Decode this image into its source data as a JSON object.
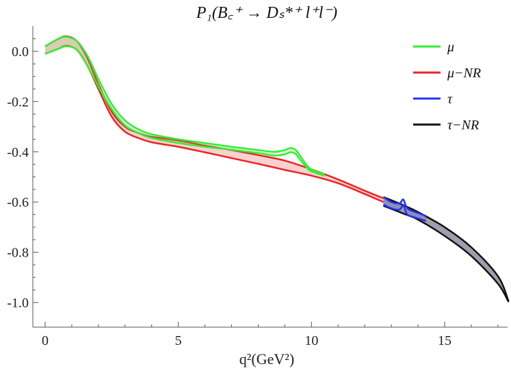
{
  "chart_data": {
    "type": "line",
    "title": "P₁(B꜀⁺ → Dₛ*⁺ l⁺l⁻)",
    "xlabel": "q²(GeV²)",
    "ylabel": "",
    "xlim": [
      0,
      17.5
    ],
    "ylim": [
      -1.05,
      0.1
    ],
    "x_ticks": [
      0,
      5,
      10,
      15
    ],
    "x_tick_labels": [
      "0",
      "5",
      "10",
      "15"
    ],
    "y_ticks": [
      0.0,
      -0.2,
      -0.4,
      -0.6,
      -0.8,
      -1.0
    ],
    "y_tick_labels": [
      "0.0",
      "-0.2",
      "-0.4",
      "-0.6",
      "-0.8",
      "-1.0"
    ],
    "grid": false,
    "legend_position": "top-right",
    "series": [
      {
        "name": "μ",
        "color": "#33ee33",
        "upper": [
          [
            0.0,
            0.02
          ],
          [
            0.5,
            0.05
          ],
          [
            0.8,
            0.058
          ],
          [
            1.2,
            0.04
          ],
          [
            1.6,
            -0.02
          ],
          [
            2.0,
            -0.11
          ],
          [
            2.5,
            -0.21
          ],
          [
            3.0,
            -0.275
          ],
          [
            3.5,
            -0.31
          ],
          [
            4.0,
            -0.33
          ],
          [
            5.0,
            -0.35
          ],
          [
            6.0,
            -0.365
          ],
          [
            7.0,
            -0.38
          ],
          [
            8.0,
            -0.393
          ],
          [
            8.6,
            -0.4
          ],
          [
            9.0,
            -0.393
          ],
          [
            9.2,
            -0.385
          ],
          [
            9.4,
            -0.392
          ],
          [
            9.6,
            -0.42
          ],
          [
            9.8,
            -0.45
          ],
          [
            10.0,
            -0.47
          ],
          [
            10.5,
            -0.49
          ]
        ],
        "lower": [
          [
            0.0,
            -0.01
          ],
          [
            0.5,
            0.01
          ],
          [
            0.8,
            0.02
          ],
          [
            1.2,
            0.005
          ],
          [
            1.6,
            -0.06
          ],
          [
            2.0,
            -0.14
          ],
          [
            2.5,
            -0.23
          ],
          [
            3.0,
            -0.295
          ],
          [
            3.5,
            -0.325
          ],
          [
            4.0,
            -0.345
          ],
          [
            5.0,
            -0.365
          ],
          [
            6.0,
            -0.38
          ],
          [
            7.0,
            -0.392
          ],
          [
            8.0,
            -0.405
          ],
          [
            8.6,
            -0.415
          ],
          [
            9.0,
            -0.41
          ],
          [
            9.2,
            -0.402
          ],
          [
            9.4,
            -0.408
          ],
          [
            9.6,
            -0.435
          ],
          [
            9.8,
            -0.46
          ],
          [
            10.0,
            -0.478
          ],
          [
            10.5,
            -0.495
          ]
        ]
      },
      {
        "name": "μ−NR",
        "color": "#ee2222",
        "upper": [
          [
            0.0,
            0.02
          ],
          [
            0.5,
            0.05
          ],
          [
            0.8,
            0.06
          ],
          [
            1.2,
            0.04
          ],
          [
            1.6,
            -0.03
          ],
          [
            2.0,
            -0.13
          ],
          [
            2.5,
            -0.24
          ],
          [
            3.0,
            -0.3
          ],
          [
            3.5,
            -0.325
          ],
          [
            4.0,
            -0.34
          ],
          [
            5.0,
            -0.355
          ],
          [
            6.0,
            -0.375
          ],
          [
            7.0,
            -0.393
          ],
          [
            8.0,
            -0.413
          ],
          [
            9.0,
            -0.435
          ],
          [
            10.0,
            -0.47
          ],
          [
            11.0,
            -0.51
          ],
          [
            12.0,
            -0.555
          ],
          [
            12.7,
            -0.585
          ]
        ],
        "lower": [
          [
            0.0,
            -0.01
          ],
          [
            0.5,
            0.01
          ],
          [
            0.8,
            0.022
          ],
          [
            1.2,
            0.005
          ],
          [
            1.6,
            -0.06
          ],
          [
            2.0,
            -0.15
          ],
          [
            2.5,
            -0.26
          ],
          [
            3.0,
            -0.32
          ],
          [
            3.5,
            -0.345
          ],
          [
            4.0,
            -0.362
          ],
          [
            5.0,
            -0.38
          ],
          [
            6.0,
            -0.402
          ],
          [
            7.0,
            -0.425
          ],
          [
            8.0,
            -0.448
          ],
          [
            9.0,
            -0.472
          ],
          [
            10.0,
            -0.495
          ],
          [
            11.0,
            -0.525
          ],
          [
            12.0,
            -0.568
          ],
          [
            12.7,
            -0.6
          ]
        ]
      },
      {
        "name": "τ",
        "color": "#2233ee",
        "upper": [
          [
            12.7,
            -0.58
          ],
          [
            13.0,
            -0.6
          ],
          [
            13.3,
            -0.605
          ],
          [
            13.45,
            -0.59
          ],
          [
            13.6,
            -0.625
          ],
          [
            13.9,
            -0.64
          ],
          [
            14.3,
            -0.655
          ]
        ],
        "lower": [
          [
            12.7,
            -0.61
          ],
          [
            13.0,
            -0.625
          ],
          [
            13.3,
            -0.63
          ],
          [
            13.45,
            -0.615
          ],
          [
            13.6,
            -0.65
          ],
          [
            13.9,
            -0.662
          ],
          [
            14.3,
            -0.675
          ]
        ]
      },
      {
        "name": "τ−NR",
        "color": "#111111",
        "upper": [
          [
            12.7,
            -0.58
          ],
          [
            13.5,
            -0.615
          ],
          [
            14.0,
            -0.64
          ],
          [
            15.0,
            -0.7
          ],
          [
            16.0,
            -0.78
          ],
          [
            17.0,
            -0.895
          ],
          [
            17.4,
            -0.995
          ]
        ],
        "lower": [
          [
            12.7,
            -0.615
          ],
          [
            13.5,
            -0.648
          ],
          [
            14.0,
            -0.67
          ],
          [
            15.0,
            -0.735
          ],
          [
            16.0,
            -0.815
          ],
          [
            17.0,
            -0.925
          ],
          [
            17.4,
            -0.998
          ]
        ]
      }
    ]
  },
  "legend_items": [
    {
      "label": "μ",
      "color": "#33ee33"
    },
    {
      "label": "μ−NR",
      "color": "#ee2222"
    },
    {
      "label": "τ",
      "color": "#2233ee"
    },
    {
      "label": "τ−NR",
      "color": "#111111"
    }
  ]
}
